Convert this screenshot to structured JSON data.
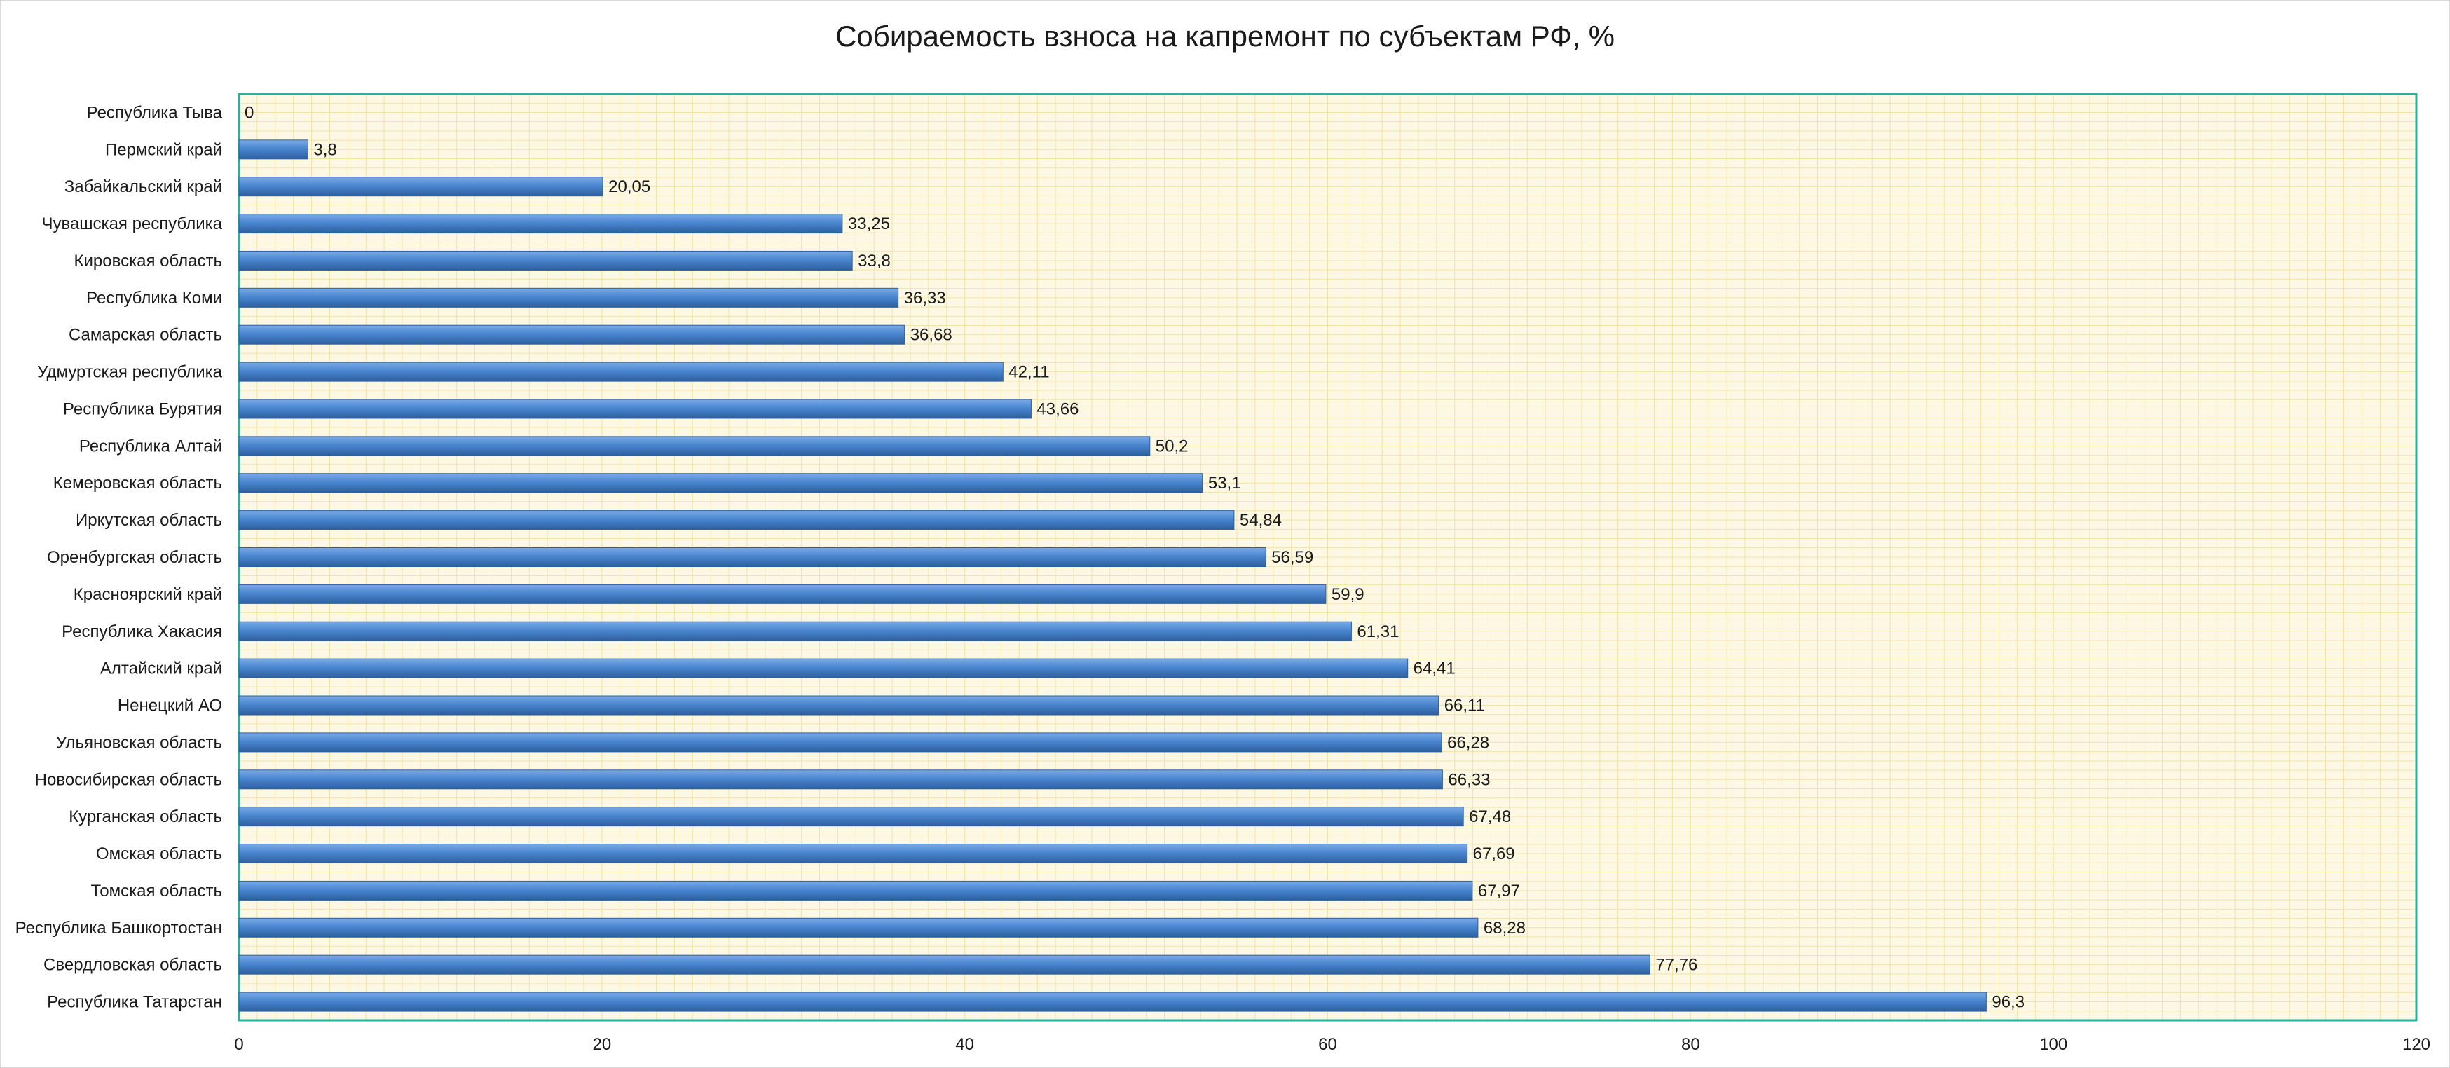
{
  "chart_data": {
    "type": "bar",
    "orientation": "horizontal",
    "title": "Собираемость взноса на капремонт по субъектам РФ, %",
    "xlabel": "",
    "ylabel": "",
    "xlim": [
      0,
      120
    ],
    "x_ticks": [
      0,
      20,
      40,
      60,
      80,
      100,
      120
    ],
    "grid": true,
    "categories": [
      "Республика Тыва",
      "Пермский край",
      "Забайкальский край",
      "Чувашская республика",
      "Кировская область",
      "Республика Коми",
      "Самарская область",
      "Удмуртская республика",
      "Республика Бурятия",
      "Республика Алтай",
      "Кемеровская область",
      "Иркутская область",
      "Оренбургская область",
      "Красноярский край",
      "Республика Хакасия",
      "Алтайский край",
      "Ненецкий АО",
      "Ульяновская область",
      "Новосибирская область",
      "Курганская область",
      "Омская область",
      "Томская область",
      "Республика Башкортостан",
      "Свердловская область",
      "Республика Татарстан"
    ],
    "values": [
      0,
      3.8,
      20.05,
      33.25,
      33.8,
      36.33,
      36.68,
      42.11,
      43.66,
      50.2,
      53.1,
      54.84,
      56.59,
      59.9,
      61.31,
      64.41,
      66.11,
      66.28,
      66.33,
      67.48,
      67.69,
      67.97,
      68.28,
      77.76,
      96.3
    ],
    "value_labels": [
      "0",
      "3,8",
      "20,05",
      "33,25",
      "33,8",
      "36,33",
      "36,68",
      "42,11",
      "43,66",
      "50,2",
      "53,1",
      "54,84",
      "56,59",
      "59,9",
      "61,31",
      "64,41",
      "66,11",
      "66,28",
      "66,33",
      "67,48",
      "67,69",
      "67,97",
      "68,28",
      "77,76",
      "96,3"
    ],
    "colors": {
      "bar": "#4a86d0",
      "bar_dark": "#2e5f9e",
      "bar_light": "#7aaae6",
      "plot_bg": "#fdf8e4",
      "grid": "#f2e3a6",
      "plot_border": "#2ab0a0"
    }
  }
}
